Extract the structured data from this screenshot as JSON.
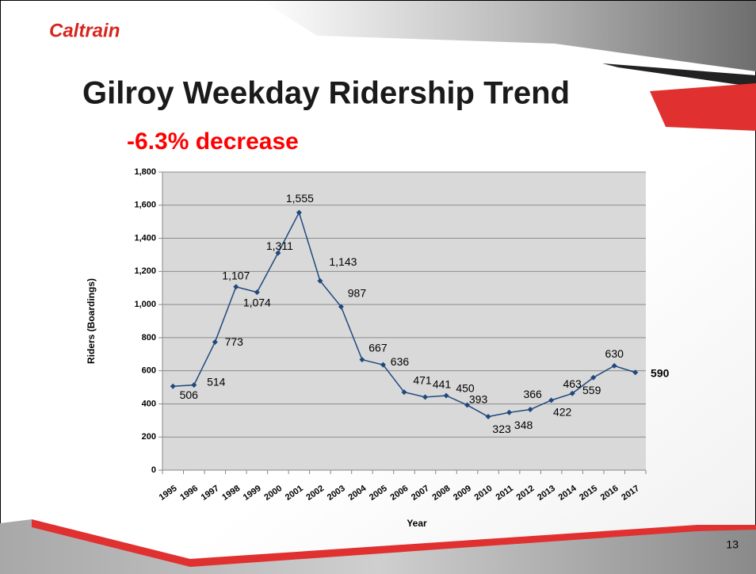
{
  "logo": "Caltrain",
  "page_number": "13",
  "chart_data": {
    "type": "line",
    "title": "Gilroy Weekday Ridership Trend",
    "subtitle": "-6.3% decrease",
    "x_label": "Year",
    "y_label": "Riders (Boardings)",
    "categories": [
      "1995",
      "1996",
      "1997",
      "1998",
      "1999",
      "2000",
      "2001",
      "2002",
      "2003",
      "2004",
      "2005",
      "2006",
      "2007",
      "2008",
      "2009",
      "2010",
      "2011",
      "2012",
      "2013",
      "2014",
      "2015",
      "2016",
      "2017"
    ],
    "series": [
      {
        "color": "#1f497d",
        "values": [
          506,
          514,
          773,
          1107,
          1074,
          1311,
          1555,
          1143,
          987,
          667,
          636,
          471,
          441,
          450,
          393,
          323,
          348,
          366,
          422,
          463,
          559,
          630,
          590
        ],
        "value_labels": [
          "506",
          "514",
          "773",
          "1,107",
          "1,074",
          "1,311",
          "1,555",
          "1,143",
          "987",
          "667",
          "636",
          "471",
          "441",
          "450",
          "393",
          "323",
          "348",
          "366",
          "422",
          "463",
          "559",
          "630",
          "590"
        ]
      }
    ],
    "ylim": [
      0,
      1800
    ],
    "yticks": [
      0,
      {
        "value": 200,
        "label": "200"
      },
      {
        "value": 400,
        "label": "400"
      },
      {
        "value": 600,
        "label": "600"
      },
      {
        "value": 800,
        "label": "800"
      },
      {
        "value": 1000,
        "label": "1,000"
      },
      {
        "value": 1200,
        "label": "1,200"
      },
      {
        "value": 1400,
        "label": "1,400"
      },
      {
        "value": 1600,
        "label": "1,600"
      },
      {
        "value": 1800,
        "label": "1,800"
      }
    ],
    "grid": true
  }
}
